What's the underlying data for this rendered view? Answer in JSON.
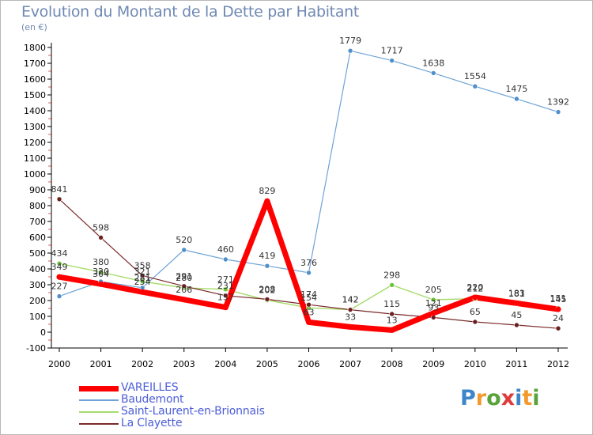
{
  "title": "Evolution du Montant de la Dette par Habitant",
  "subtitle": "(en €)",
  "brand": {
    "letters": [
      {
        "char": "P",
        "color": "#3d87c9"
      },
      {
        "char": "r",
        "color": "#f29a2e"
      },
      {
        "char": "o",
        "color": "#5aa33c"
      },
      {
        "char": "x",
        "color": "#e03a3a"
      },
      {
        "char": "i",
        "color": "#3d87c9"
      },
      {
        "char": "t",
        "color": "#f29a2e"
      },
      {
        "char": "i",
        "color": "#5aa33c"
      }
    ]
  },
  "chart_data": {
    "type": "line",
    "x": [
      "2000",
      "2001",
      "2002",
      "2003",
      "2004",
      "2005",
      "2006",
      "2007",
      "2008",
      "2009",
      "2010",
      "2011",
      "2012"
    ],
    "ylim": [
      -100,
      1800
    ],
    "yticks": [
      -100,
      0,
      100,
      200,
      300,
      400,
      500,
      600,
      700,
      800,
      900,
      1000,
      1100,
      1200,
      1300,
      1400,
      1500,
      1600,
      1700,
      1800
    ],
    "grid": false,
    "legend_position": "bottom-left",
    "series": [
      {
        "name": "VAREILLES",
        "color": "#ff0000",
        "values": [
          349,
          304,
          254,
          206,
          157,
          829,
          63,
          33,
          13,
          121,
          220,
          183,
          145
        ]
      },
      {
        "name": "Baudemont",
        "color": "#6fa3d6",
        "values": [
          227,
          320,
          281,
          520,
          460,
          419,
          376,
          1779,
          1717,
          1638,
          1554,
          1475,
          1392
        ]
      },
      {
        "name": "Saint-Laurent-en-Brionnais",
        "color": "#a6dc6b",
        "values": [
          434,
          380,
          321,
          280,
          271,
          202,
          154,
          142,
          298,
          205,
          212,
          181,
          151
        ]
      },
      {
        "name": "La Clayette",
        "color": "#7a2a2a",
        "values": [
          841,
          598,
          358,
          291,
          231,
          208,
          174,
          142,
          115,
          93,
          65,
          45,
          24
        ]
      }
    ]
  }
}
